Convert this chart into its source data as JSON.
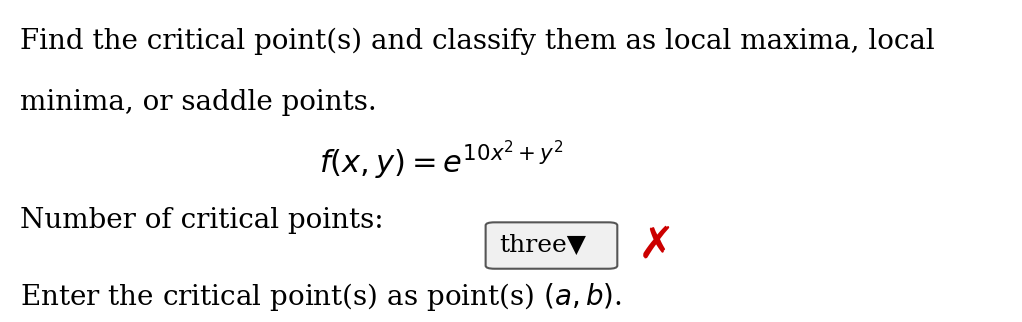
{
  "background_color": "#ffffff",
  "line1": "Find the critical point(s) and classify them as local maxima, local",
  "line2": "minima, or saddle points.",
  "formula": "$f(x, y) = e^{10x^2+y^2}$",
  "label_text": "Number of critical points:",
  "dropdown_text": "three",
  "dropdown_arrow": "▼",
  "x_mark_color": "#cc0000",
  "bottom_text": "Enter the critical point(s) as point(s) $(a, b)$.",
  "text_color": "#000000",
  "font_size_main": 20,
  "font_size_formula": 22,
  "font_size_bottom": 20,
  "font_size_dropdown": 18
}
